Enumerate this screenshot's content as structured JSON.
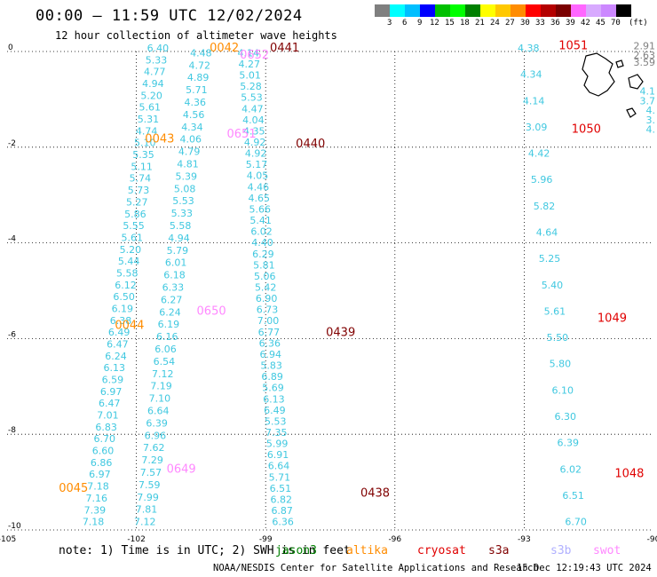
{
  "title": "00:00 – 11:59 UTC 12/02/2024",
  "subtitle": "12 hour collection of altimeter wave heights",
  "legend": {
    "colors": [
      "#7f7f7f",
      "#00ffff",
      "#00bfff",
      "#0000ff",
      "#00c000",
      "#00ff00",
      "#008000",
      "#ffff00",
      "#ffc800",
      "#ff8c00",
      "#ff0000",
      "#b40000",
      "#7a0000",
      "#ff66ff",
      "#d8aaff",
      "#cc88ff",
      "#000000"
    ],
    "labels": [
      "3",
      "6",
      "9",
      "12",
      "15",
      "18",
      "21",
      "24",
      "27",
      "30",
      "33",
      "36",
      "39",
      "42",
      "45",
      "70"
    ],
    "unit": "(ft)"
  },
  "note": "note:  1) Time is in UTC;  2) SWH is in feet",
  "satellites": [
    {
      "name": "jason3",
      "color": "#008000"
    },
    {
      "name": "altika",
      "color": "#ff8c00"
    },
    {
      "name": "cryosat",
      "color": "#e00000"
    },
    {
      "name": "s3a",
      "color": "#800000"
    },
    {
      "name": "s3b",
      "color": "#b0b0ff"
    },
    {
      "name": "swot",
      "color": "#ff88ff"
    }
  ],
  "credit": "NOAA/NESDIS Center for Satellite Applications and Research",
  "stamp": "15 Dec 12:19:43 UTC 2024",
  "map": {
    "lon_ticks": [
      "-105",
      "-102",
      "-99",
      "-96",
      "-93",
      "-90"
    ],
    "lat_ticks": [
      "0",
      "-2",
      "-4",
      "-6",
      "-8",
      "-10"
    ],
    "lon_range": [
      -105,
      -90
    ],
    "lat_range": [
      -10,
      0
    ],
    "track_color": "#40c8e0",
    "tracks": [
      {
        "id": "track1",
        "color": "#40c8e0",
        "lon_start": -101.5,
        "lat_start": 0.0,
        "lon_end": -103.0,
        "lat_end": -9.9,
        "values": [
          "6.40",
          "5.33",
          "4.77",
          "4.94",
          "5.20",
          "5.61",
          "5.31",
          "4.74",
          "5.10",
          "5.35",
          "5.11",
          "5.74",
          "5.73",
          "5.27",
          "5.86",
          "5.55",
          "5.61",
          "5.20",
          "5.44",
          "5.58",
          "6.12",
          "6.50",
          "6.19",
          "6.38",
          "6.49",
          "6.47",
          "6.24",
          "6.13",
          "6.59",
          "6.97",
          "6.47",
          "7.01",
          "6.83",
          "6.70",
          "6.60",
          "6.86",
          "6.97",
          "7.18",
          "7.16",
          "7.39",
          "7.18"
        ]
      },
      {
        "id": "track2",
        "color": "#40c8e0",
        "lon_start": -100.5,
        "lat_start": -0.1,
        "lon_end": -101.8,
        "lat_end": -9.9,
        "values": [
          "4.48",
          "4.72",
          "4.89",
          "5.71",
          "4.36",
          "4.56",
          "4.34",
          "4.06",
          "4.79",
          "4.81",
          "5.39",
          "5.08",
          "5.53",
          "5.33",
          "5.58",
          "4.94",
          "5.79",
          "6.01",
          "6.18",
          "6.33",
          "6.27",
          "6.24",
          "6.19",
          "6.16",
          "6.06",
          "6.54",
          "7.12",
          "7.19",
          "7.10",
          "6.64",
          "6.39",
          "6.96",
          "7.62",
          "7.29",
          "7.57",
          "7.59",
          "7.99",
          "7.81",
          "7.12"
        ]
      },
      {
        "id": "track3",
        "color": "#40c8e0",
        "lon_start": -99.4,
        "lat_start": -0.1,
        "lon_end": -98.6,
        "lat_end": -9.9,
        "values": [
          "4.14",
          "4.27",
          "5.01",
          "5.28",
          "5.53",
          "4.47",
          "4.04",
          "4.35",
          "4.92",
          "4.92",
          "5.17",
          "4.05",
          "4.46",
          "4.65",
          "5.66",
          "5.41",
          "6.02",
          "4.40",
          "6.29",
          "5.81",
          "5.06",
          "5.42",
          "6.90",
          "6.73",
          "7.00",
          "6.77",
          "6.36",
          "6.94",
          "5.83",
          "6.89",
          "5.69",
          "6.13",
          "6.49",
          "5.53",
          "7.35",
          "5.99",
          "6.91",
          "6.64",
          "5.71",
          "6.51",
          "6.82",
          "6.87",
          "6.36"
        ]
      },
      {
        "id": "track4",
        "color": "#40c8e0",
        "lon_start": -92.9,
        "lat_start": 0.0,
        "lon_end": -91.8,
        "lat_end": -9.9,
        "values": [
          "4.38",
          "4.34",
          "4.14",
          "3.09",
          "4.42",
          "5.96",
          "5.82",
          "4.64",
          "5.25",
          "5.40",
          "5.61",
          "5.50",
          "5.80",
          "6.10",
          "6.30",
          "6.39",
          "6.02",
          "6.51",
          "6.70"
        ]
      }
    ],
    "time_labels": [
      {
        "text": "0042",
        "lon": -100.3,
        "lat": 0.0,
        "color": "#ff8c00"
      },
      {
        "text": "0043",
        "lon": -101.8,
        "lat": -1.9,
        "color": "#ff8c00"
      },
      {
        "text": "0044",
        "lon": -102.5,
        "lat": -5.8,
        "color": "#ff8c00"
      },
      {
        "text": "0045",
        "lon": -103.8,
        "lat": -9.2,
        "color": "#ff8c00"
      },
      {
        "text": "0652",
        "lon": -99.6,
        "lat": -0.15,
        "color": "#ff88ff"
      },
      {
        "text": "0651",
        "lon": -99.9,
        "lat": -1.8,
        "color": "#ff88ff"
      },
      {
        "text": "0650",
        "lon": -100.6,
        "lat": -5.5,
        "color": "#ff88ff"
      },
      {
        "text": "0649",
        "lon": -101.3,
        "lat": -8.8,
        "color": "#ff88ff"
      },
      {
        "text": "0441",
        "lon": -98.9,
        "lat": 0.0,
        "color": "#800000"
      },
      {
        "text": "0440",
        "lon": -98.3,
        "lat": -2.0,
        "color": "#800000"
      },
      {
        "text": "0439",
        "lon": -97.6,
        "lat": -5.95,
        "color": "#800000"
      },
      {
        "text": "0438",
        "lon": -96.8,
        "lat": -9.3,
        "color": "#800000"
      },
      {
        "text": "1051",
        "lon": -92.2,
        "lat": 0.05,
        "color": "#e00000"
      },
      {
        "text": "1050",
        "lon": -91.9,
        "lat": -1.7,
        "color": "#e00000"
      },
      {
        "text": "1049",
        "lon": -91.3,
        "lat": -5.65,
        "color": "#e00000"
      },
      {
        "text": "1048",
        "lon": -90.9,
        "lat": -8.9,
        "color": "#e00000"
      }
    ],
    "right_edge_values": [
      {
        "text": "2.91",
        "lat": 0.05,
        "color": "#808080"
      },
      {
        "text": "2.63",
        "lat": -0.15,
        "color": "#808080"
      },
      {
        "text": "3.59",
        "lat": -0.3,
        "color": "#808080"
      },
      {
        "text": "4.1",
        "lat": -0.9,
        "color": "#40c8e0"
      },
      {
        "text": "3.7",
        "lat": -1.1,
        "color": "#40c8e0"
      },
      {
        "text": "4.",
        "lat": -1.3,
        "color": "#40c8e0"
      },
      {
        "text": "3.",
        "lat": -1.5,
        "color": "#40c8e0"
      },
      {
        "text": "4.",
        "lat": -1.7,
        "color": "#40c8e0"
      }
    ]
  }
}
